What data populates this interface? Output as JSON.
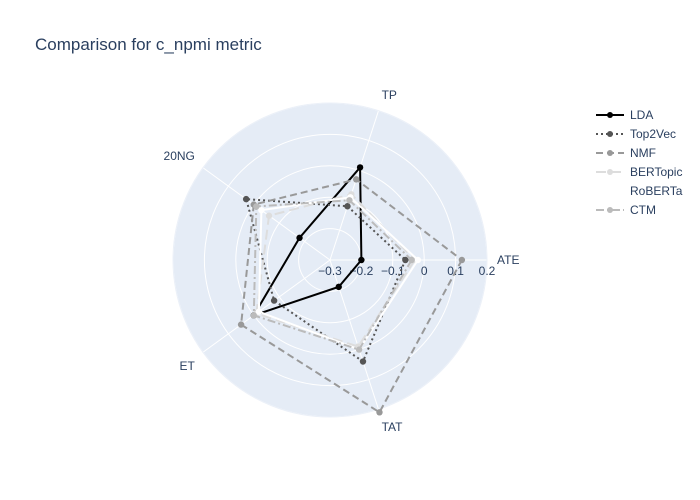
{
  "chart_data": {
    "type": "radar",
    "title": "Comparison for c_npmi metric",
    "axes": [
      "ATE",
      "TAT",
      "ET",
      "20NG",
      "TP"
    ],
    "radial_range": [
      -0.3,
      0.2
    ],
    "radial_ticks": [
      -0.3,
      -0.2,
      -0.1,
      0,
      0.1,
      0.2
    ],
    "grid": true,
    "legend_position": "top-right",
    "series": [
      {
        "name": "LDA",
        "values": [
          -0.2,
          -0.21,
          0.0,
          -0.18,
          0.01
        ],
        "color": "#000000",
        "dash": "solid",
        "marker": true
      },
      {
        "name": "Top2Vec",
        "values": [
          -0.06,
          0.04,
          -0.08,
          0.03,
          -0.12
        ],
        "color": "#555555",
        "dash": "dot",
        "marker": true
      },
      {
        "name": "NMF",
        "values": [
          0.12,
          0.21,
          0.05,
          0.0,
          -0.03
        ],
        "color": "#999999",
        "dash": "dash",
        "marker": true
      },
      {
        "name": "BERTopic",
        "values": [
          -0.03,
          -0.01,
          -0.01,
          -0.06,
          -0.08
        ],
        "color": "#dddddd",
        "dash": "longdash",
        "marker": true
      },
      {
        "name": "RoBERTa",
        "values": [
          -0.02,
          0.0,
          -0.02,
          -0.03,
          -0.09
        ],
        "color": "#ffffff",
        "dash": "solid",
        "marker": true
      },
      {
        "name": "CTM",
        "values": [
          -0.04,
          0.0,
          0.0,
          -0.01,
          -0.1
        ],
        "color": "#bbbbbb",
        "dash": "dashdot",
        "marker": true
      }
    ]
  }
}
